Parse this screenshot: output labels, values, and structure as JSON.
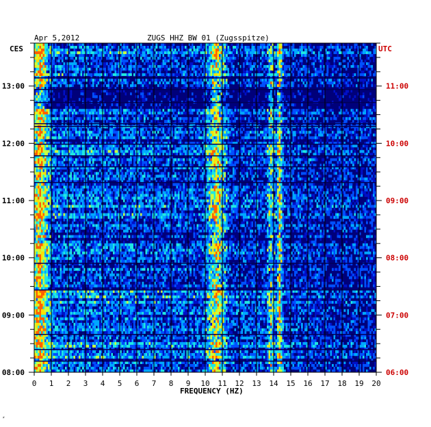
{
  "chart_data": {
    "type": "heatmap",
    "title_date": "Apr 5,2012",
    "title_station": "ZUGS HHZ BW 01 (Zugsspitze)",
    "left_tz": "CES",
    "right_tz": "UTC",
    "xlabel": "FREQUENCY (HZ)",
    "x_ticks": [
      "0",
      "1",
      "2",
      "3",
      "4",
      "5",
      "6",
      "7",
      "8",
      "9",
      "10",
      "11",
      "12",
      "13",
      "14",
      "15",
      "16",
      "17",
      "18",
      "19",
      "20"
    ],
    "xlim": [
      0,
      20
    ],
    "time_range_cest": [
      "08:00",
      "13:45"
    ],
    "left_time_labels": [
      {
        "label": "13:00",
        "minutes_from_start": 300
      },
      {
        "label": "12:00",
        "minutes_from_start": 240
      },
      {
        "label": "11:00",
        "minutes_from_start": 180
      },
      {
        "label": "10:00",
        "minutes_from_start": 120
      },
      {
        "label": "09:00",
        "minutes_from_start": 60
      },
      {
        "label": "08:00",
        "minutes_from_start": 0
      }
    ],
    "right_time_labels": [
      {
        "label": "11:00",
        "minutes_from_start": 300
      },
      {
        "label": "10:00",
        "minutes_from_start": 240
      },
      {
        "label": "09:00",
        "minutes_from_start": 180
      },
      {
        "label": "08:00",
        "minutes_from_start": 120
      },
      {
        "label": "07:00",
        "minutes_from_start": 60
      },
      {
        "label": "06:00",
        "minutes_from_start": 0
      }
    ],
    "colorscale": [
      "#00007a",
      "#0010c8",
      "#0050ff",
      "#00a8ff",
      "#20e8e0",
      "#c8ff40",
      "#ffe000",
      "#ff6000",
      "#c80000"
    ],
    "notable_bands_hz": [
      {
        "center": 0.3,
        "width": 0.5,
        "level": 0.55
      },
      {
        "center": 10.6,
        "width": 0.8,
        "level": 0.65
      },
      {
        "center": 14.3,
        "width": 0.25,
        "level": 0.7
      },
      {
        "center": 13.8,
        "width": 0.3,
        "level": 0.5
      }
    ],
    "grid": true
  },
  "footer_mark": "⸗"
}
